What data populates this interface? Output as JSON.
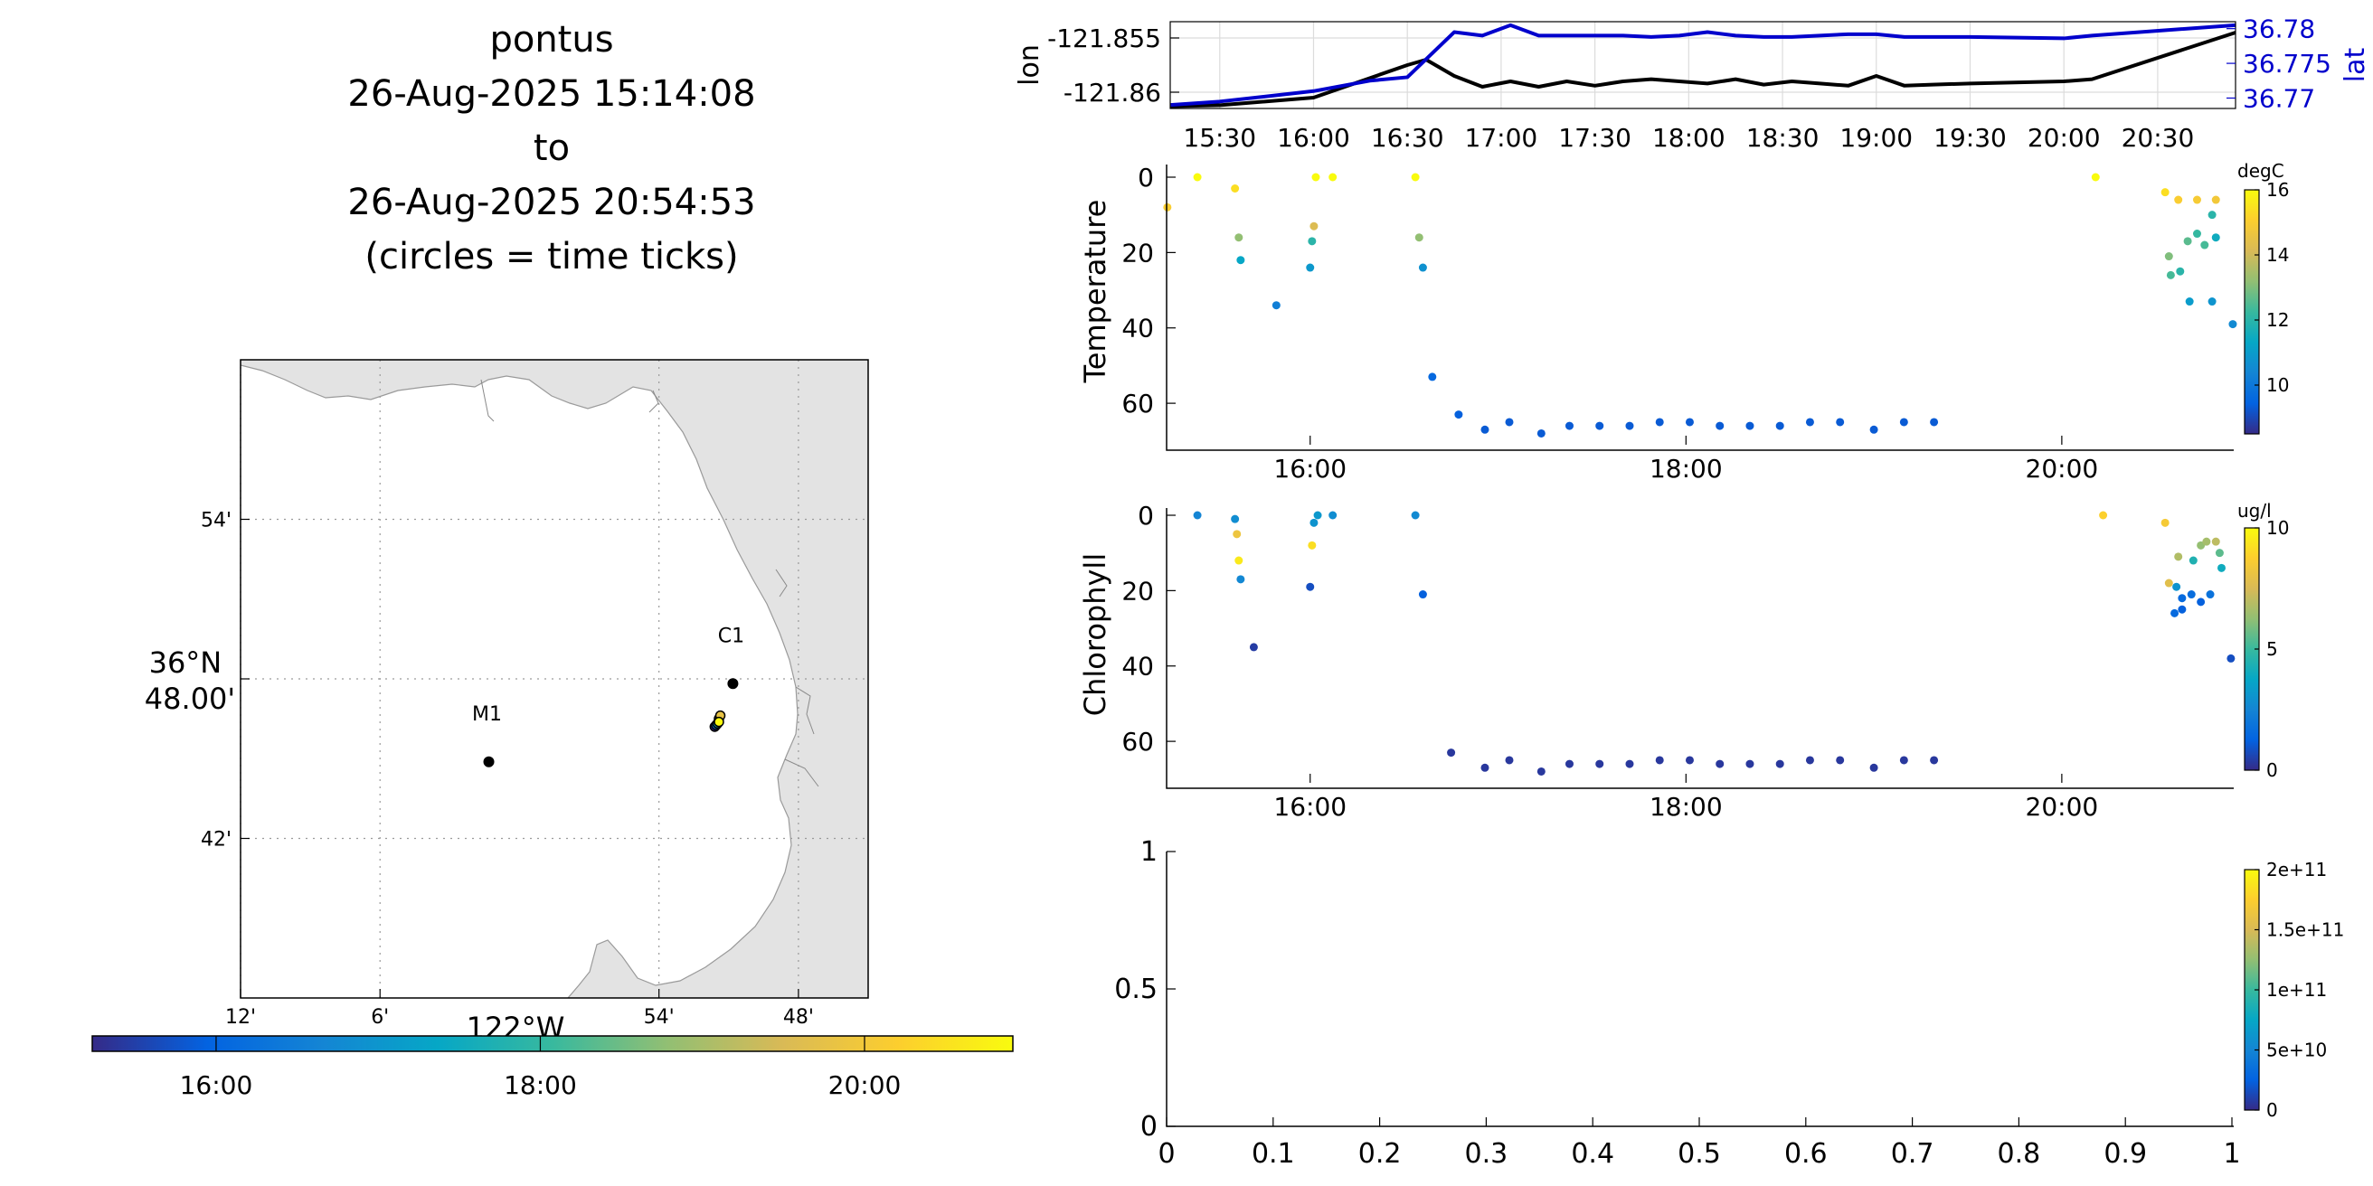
{
  "title": {
    "lines": [
      "pontus",
      "26-Aug-2025 15:14:08",
      "to",
      "26-Aug-2025 20:54:53",
      "(circles = time ticks)"
    ]
  },
  "colors": {
    "track_lon": "#000000",
    "track_lat": "#0000cc",
    "land": "#e3e3e3",
    "coast": "#9a9a9a",
    "parula": [
      "#352a87",
      "#0363e1",
      "#1485d4",
      "#06a7c6",
      "#38b99e",
      "#92bf73",
      "#d9ba56",
      "#fcce2e",
      "#f9fb0e"
    ]
  },
  "chart_data": [
    {
      "type": "map",
      "name": "track-map",
      "lon_ticks": [
        {
          "value": -122.2,
          "label": "12'"
        },
        {
          "value": -122.1,
          "label": "6'"
        },
        {
          "value": -121.9,
          "label": "54'"
        },
        {
          "value": -121.8,
          "label": "48'"
        }
      ],
      "lon_main_label": "122°W",
      "lat_ticks": [
        {
          "value": 36.9,
          "label": "54'"
        },
        {
          "value": 36.8,
          "label": "36°N 48.00'"
        },
        {
          "value": 36.7,
          "label": "42'"
        }
      ],
      "xlim": [
        -122.2,
        -121.75
      ],
      "ylim": [
        36.6,
        37.0
      ],
      "stations": [
        {
          "name": "M1",
          "lon": -122.022,
          "lat": 36.748
        },
        {
          "name": "C1",
          "lon": -121.847,
          "lat": 36.797
        }
      ],
      "track_points": [
        {
          "lon": -121.86,
          "lat": 36.77
        },
        {
          "lon": -121.859,
          "lat": 36.771
        },
        {
          "lon": -121.858,
          "lat": 36.772
        },
        {
          "lon": -121.857,
          "lat": 36.775
        },
        {
          "lon": -121.856,
          "lat": 36.777
        },
        {
          "lon": -121.857,
          "lat": 36.773
        }
      ],
      "time_colorbar": {
        "ticks": [
          "16:00",
          "18:00",
          "20:00"
        ],
        "tick_hours": [
          16,
          18,
          20
        ],
        "range_hours": [
          15.236,
          20.915
        ]
      }
    },
    {
      "type": "line",
      "name": "lon-lat-timeseries",
      "ylabel_left": "lon",
      "ylabel_right": "lat",
      "left_ylim": [
        -121.8615,
        -121.8535
      ],
      "left_ticks": [
        -121.855,
        -121.86
      ],
      "right_ylim": [
        36.7685,
        36.781
      ],
      "right_ticks": [
        36.78,
        36.775,
        36.77
      ],
      "xlim_hours": [
        15.236,
        20.915
      ],
      "x_ticks": [
        "15:30",
        "16:00",
        "16:30",
        "17:00",
        "17:30",
        "18:00",
        "18:30",
        "19:00",
        "19:30",
        "20:00",
        "20:30"
      ],
      "x_tick_hours": [
        15.5,
        16,
        16.5,
        17,
        17.5,
        18,
        18.5,
        19,
        19.5,
        20,
        20.5
      ],
      "date_label": "Aug 26, 2025",
      "series": [
        {
          "axis": "left",
          "x": [
            15.236,
            15.5,
            16.0,
            16.5,
            16.6,
            16.75,
            16.9,
            17.05,
            17.2,
            17.35,
            17.5,
            17.65,
            17.8,
            17.95,
            18.1,
            18.25,
            18.4,
            18.55,
            18.7,
            18.85,
            19.0,
            19.15,
            19.3,
            19.5,
            20.0,
            20.15,
            20.915
          ],
          "y": [
            -121.8613,
            -121.8612,
            -121.8605,
            -121.8575,
            -121.857,
            -121.8585,
            -121.8595,
            -121.859,
            -121.8595,
            -121.859,
            -121.8594,
            -121.859,
            -121.8588,
            -121.859,
            -121.8592,
            -121.8588,
            -121.8593,
            -121.859,
            -121.8592,
            -121.8594,
            -121.8585,
            -121.8594,
            -121.8593,
            -121.8592,
            -121.859,
            -121.8588,
            -121.8545
          ]
        },
        {
          "axis": "right",
          "x": [
            15.236,
            15.5,
            16.0,
            16.3,
            16.5,
            16.75,
            16.9,
            17.05,
            17.2,
            17.35,
            17.5,
            17.65,
            17.8,
            17.95,
            18.1,
            18.25,
            18.4,
            18.55,
            18.7,
            18.85,
            19.0,
            19.15,
            19.3,
            19.5,
            20.0,
            20.15,
            20.915
          ],
          "y": [
            36.769,
            36.7695,
            36.771,
            36.7725,
            36.773,
            36.7795,
            36.779,
            36.7805,
            36.779,
            36.779,
            36.779,
            36.779,
            36.7788,
            36.779,
            36.7795,
            36.779,
            36.7788,
            36.7788,
            36.779,
            36.7792,
            36.7792,
            36.7788,
            36.7788,
            36.7788,
            36.7786,
            36.779,
            36.7805
          ]
        }
      ]
    },
    {
      "type": "scatter",
      "name": "temperature-section",
      "ylabel": "Temperature",
      "colorbar_label": "degC",
      "ylim": [
        0,
        71
      ],
      "y_ticks": [
        0,
        20,
        40,
        60
      ],
      "xlim_hours": [
        15.236,
        20.915
      ],
      "x_ticks": [
        "16:00",
        "18:00",
        "20:00"
      ],
      "x_tick_hours": [
        16,
        18,
        20
      ],
      "clim": [
        8.5,
        16.0
      ],
      "c_ticks": [
        10,
        12,
        14,
        16
      ],
      "points": [
        [
          15.24,
          8,
          15.0
        ],
        [
          15.4,
          0,
          16.0
        ],
        [
          15.6,
          3,
          15.4
        ],
        [
          15.62,
          16,
          13.2
        ],
        [
          15.63,
          22,
          11.3
        ],
        [
          15.82,
          34,
          10.2
        ],
        [
          16.0,
          24,
          10.9
        ],
        [
          16.01,
          17,
          12.0
        ],
        [
          16.02,
          13,
          14.2
        ],
        [
          16.03,
          0,
          16.0
        ],
        [
          16.12,
          0,
          16.0
        ],
        [
          16.56,
          0,
          16.0
        ],
        [
          16.58,
          16,
          13.2
        ],
        [
          16.6,
          24,
          10.7
        ],
        [
          16.65,
          53,
          9.6
        ],
        [
          16.79,
          63,
          9.4
        ],
        [
          16.93,
          67,
          9.3
        ],
        [
          17.06,
          65,
          9.3
        ],
        [
          17.23,
          68,
          9.3
        ],
        [
          17.38,
          66,
          9.3
        ],
        [
          17.54,
          66,
          9.3
        ],
        [
          17.7,
          66,
          9.3
        ],
        [
          17.86,
          65,
          9.3
        ],
        [
          18.02,
          65,
          9.3
        ],
        [
          18.18,
          66,
          9.3
        ],
        [
          18.34,
          66,
          9.3
        ],
        [
          18.5,
          66,
          9.3
        ],
        [
          18.66,
          65,
          9.3
        ],
        [
          18.82,
          65,
          9.3
        ],
        [
          19.0,
          67,
          9.3
        ],
        [
          19.16,
          65,
          9.3
        ],
        [
          19.32,
          65,
          9.3
        ],
        [
          20.18,
          0,
          16.0
        ],
        [
          20.55,
          4,
          15.4
        ],
        [
          20.62,
          6,
          15.0
        ],
        [
          20.72,
          6,
          14.9
        ],
        [
          20.82,
          6,
          14.8
        ],
        [
          20.57,
          21,
          13.0
        ],
        [
          20.58,
          26,
          12.4
        ],
        [
          20.63,
          25,
          12.0
        ],
        [
          20.67,
          17,
          12.6
        ],
        [
          20.72,
          15,
          12.2
        ],
        [
          20.76,
          18,
          12.4
        ],
        [
          20.8,
          10,
          12.0
        ],
        [
          20.82,
          16,
          11.5
        ],
        [
          20.68,
          33,
          11.0
        ],
        [
          20.8,
          33,
          10.8
        ],
        [
          20.91,
          39,
          10.5
        ]
      ]
    },
    {
      "type": "scatter",
      "name": "chlorophyll-section",
      "ylabel": "Chlorophyll",
      "colorbar_label": "ug/l",
      "ylim": [
        0,
        71
      ],
      "y_ticks": [
        0,
        20,
        40,
        60
      ],
      "xlim_hours": [
        15.236,
        20.915
      ],
      "x_ticks": [
        "16:00",
        "18:00",
        "20:00"
      ],
      "x_tick_hours": [
        16,
        18,
        20
      ],
      "clim": [
        0,
        10
      ],
      "c_ticks": [
        0,
        5,
        10
      ],
      "points": [
        [
          15.4,
          0,
          2.5
        ],
        [
          15.6,
          1,
          2.8
        ],
        [
          15.61,
          5,
          8.2
        ],
        [
          15.62,
          12,
          9.5
        ],
        [
          15.63,
          17,
          2.6
        ],
        [
          15.7,
          35,
          0.4
        ],
        [
          16.0,
          19,
          0.8
        ],
        [
          16.01,
          8,
          9.2
        ],
        [
          16.02,
          2,
          3.0
        ],
        [
          16.04,
          0,
          3.2
        ],
        [
          16.12,
          0,
          2.8
        ],
        [
          16.56,
          0,
          2.7
        ],
        [
          16.6,
          21,
          1.2
        ],
        [
          16.75,
          63,
          0.3
        ],
        [
          16.93,
          67,
          0.3
        ],
        [
          17.06,
          65,
          0.3
        ],
        [
          17.23,
          68,
          0.3
        ],
        [
          17.38,
          66,
          0.3
        ],
        [
          17.54,
          66,
          0.3
        ],
        [
          17.7,
          66,
          0.3
        ],
        [
          17.86,
          65,
          0.3
        ],
        [
          18.02,
          65,
          0.3
        ],
        [
          18.18,
          66,
          0.3
        ],
        [
          18.34,
          66,
          0.3
        ],
        [
          18.5,
          66,
          0.3
        ],
        [
          18.66,
          65,
          0.3
        ],
        [
          18.82,
          65,
          0.3
        ],
        [
          19.0,
          67,
          0.3
        ],
        [
          19.16,
          65,
          0.3
        ],
        [
          19.32,
          65,
          0.3
        ],
        [
          20.22,
          0,
          8.8
        ],
        [
          20.55,
          2,
          8.5
        ],
        [
          20.62,
          11,
          6.8
        ],
        [
          20.7,
          12,
          4.4
        ],
        [
          20.74,
          8,
          6.3
        ],
        [
          20.77,
          7,
          6.6
        ],
        [
          20.82,
          7,
          7.0
        ],
        [
          20.84,
          10,
          5.5
        ],
        [
          20.57,
          18,
          7.8
        ],
        [
          20.61,
          19,
          3.0
        ],
        [
          20.64,
          22,
          1.5
        ],
        [
          20.69,
          21,
          1.6
        ],
        [
          20.74,
          23,
          1.2
        ],
        [
          20.79,
          21,
          1.8
        ],
        [
          20.85,
          14,
          4.0
        ],
        [
          20.6,
          26,
          1.5
        ],
        [
          20.64,
          25,
          1.2
        ],
        [
          20.9,
          38,
          0.8
        ]
      ]
    },
    {
      "type": "scatter",
      "name": "empty-section",
      "xlim": [
        0,
        1
      ],
      "ylim": [
        0,
        1
      ],
      "x_ticks": [
        "0",
        "0.1",
        "0.2",
        "0.3",
        "0.4",
        "0.5",
        "0.6",
        "0.7",
        "0.8",
        "0.9",
        "1"
      ],
      "y_ticks": [
        "0",
        "0.5",
        "1"
      ],
      "c_ticks": [
        "0",
        "5e+10",
        "1e+11",
        "1.5e+11",
        "2e+11"
      ],
      "points": []
    }
  ]
}
